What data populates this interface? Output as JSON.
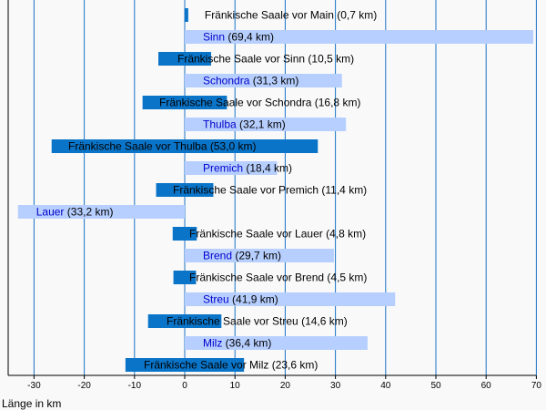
{
  "chart_data": {
    "type": "bar",
    "orientation": "horizontal",
    "xlabel": "Länge in km",
    "xlim": [
      -33,
      70
    ],
    "xticks": [
      -30,
      -20,
      -10,
      0,
      10,
      20,
      30,
      40,
      50,
      60,
      70
    ],
    "grid": true,
    "colors": {
      "main": "#0a74c8",
      "tributary": "#b7cfff",
      "grid": "#1a73c8",
      "axis": "#000000"
    },
    "bars": [
      {
        "label": "Fränkische Saale vor Main (0,7 km)",
        "kind": "main",
        "start": 0,
        "end": 0.7
      },
      {
        "label": "Sinn",
        "suffix": " (69,4 km)",
        "kind": "tributary",
        "start": 0,
        "end": 69.4
      },
      {
        "label": "Fränkische Saale vor Sinn (10,5 km)",
        "kind": "main",
        "start": -5.25,
        "end": 5.25
      },
      {
        "label": "Schondra",
        "suffix": " (31,3 km)",
        "kind": "tributary",
        "start": 0,
        "end": 31.3
      },
      {
        "label": "Fränkische Saale vor Schondra (16,8 km)",
        "kind": "main",
        "start": -8.4,
        "end": 8.4
      },
      {
        "label": "Thulba",
        "suffix": " (32,1 km)",
        "kind": "tributary",
        "start": 0,
        "end": 32.1
      },
      {
        "label": "Fränkische Saale vor Thulba (53,0 km)",
        "kind": "main",
        "start": -26.5,
        "end": 26.5
      },
      {
        "label": "Premich",
        "suffix": " (18,4 km)",
        "kind": "tributary",
        "start": 0,
        "end": 18.4
      },
      {
        "label": "Fränkische Saale vor Premich (11,4 km)",
        "kind": "main",
        "start": -5.7,
        "end": 5.7
      },
      {
        "label": "Lauer",
        "suffix": " (33,2 km)",
        "kind": "tributary",
        "start": -33.2,
        "end": 0
      },
      {
        "label": "Fränkische Saale vor Lauer (4,8 km)",
        "kind": "main",
        "start": -2.4,
        "end": 2.4
      },
      {
        "label": "Brend",
        "suffix": " (29,7 km)",
        "kind": "tributary",
        "start": 0,
        "end": 29.7
      },
      {
        "label": "Fränkische Saale vor Brend (4,5 km)",
        "kind": "main",
        "start": -2.25,
        "end": 2.25
      },
      {
        "label": "Streu",
        "suffix": " (41,9 km)",
        "kind": "tributary",
        "start": 0,
        "end": 41.9
      },
      {
        "label": "Fränkische Saale vor Streu (14,6 km)",
        "kind": "main",
        "start": -7.3,
        "end": 7.3
      },
      {
        "label": "Milz",
        "suffix": " (36,4 km)",
        "kind": "tributary",
        "start": 0,
        "end": 36.4
      },
      {
        "label": "Fränkische Saale vor Milz (23,6 km)",
        "kind": "main",
        "start": -11.8,
        "end": 11.8
      }
    ]
  }
}
